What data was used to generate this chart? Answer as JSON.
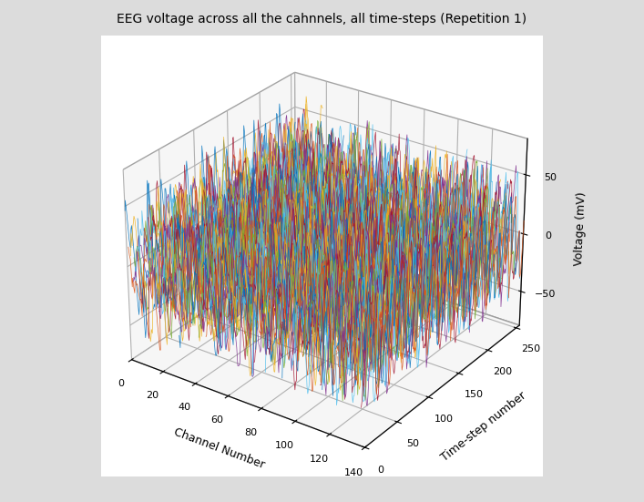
{
  "title": "EEG voltage across all the cahnnels, all time-steps (Repetition 1)",
  "xlabel": "Channel Number",
  "ylabel": "Time-step number",
  "zlabel": "Voltage (mV)",
  "n_channels": 128,
  "n_timesteps": 256,
  "channel_max": 140,
  "timestep_max": 256,
  "voltage_min": -80,
  "voltage_max": 80,
  "zticks": [
    -50,
    0,
    50
  ],
  "yticks": [
    0,
    50,
    100,
    150,
    200,
    250
  ],
  "xticks": [
    0,
    20,
    40,
    60,
    80,
    100,
    120,
    140
  ],
  "background_color": "#dcdcdc",
  "pane_color": "#f5f5f5",
  "linewidth": 0.5,
  "seed": 42,
  "elev": 28,
  "azim": -55
}
